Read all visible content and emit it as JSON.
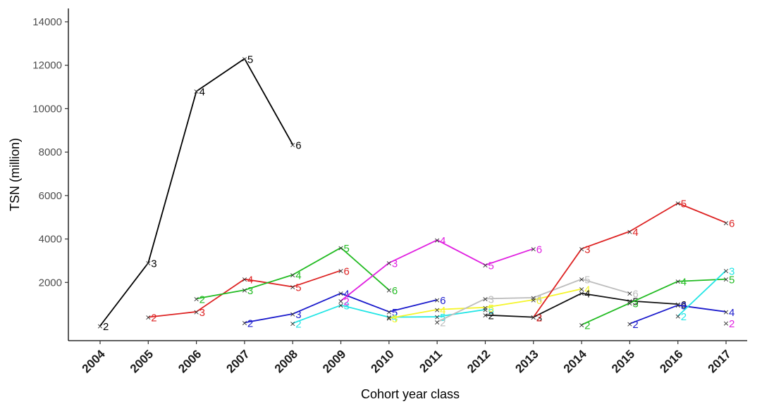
{
  "chart_data": {
    "type": "line",
    "xlabel": "Cohort year class",
    "ylabel": "TSN (million)",
    "x_ticks": [
      "2004",
      "2005",
      "2006",
      "2007",
      "2008",
      "2009",
      "2010",
      "2011",
      "2012",
      "2013",
      "2014",
      "2015",
      "2016",
      "2017"
    ],
    "y_ticks": [
      2000,
      4000,
      6000,
      8000,
      10000,
      12000,
      14000
    ],
    "xlim": [
      2004,
      2017
    ],
    "ylim": [
      -800,
      14600
    ],
    "grid": false,
    "marker": "×",
    "series": [
      {
        "color": "#000000",
        "points": [
          [
            2004,
            0,
            "2"
          ],
          [
            2005,
            2900,
            "3"
          ],
          [
            2006,
            10800,
            "4"
          ],
          [
            2007,
            12300,
            "5"
          ],
          [
            2008,
            8350,
            "6"
          ]
        ]
      },
      {
        "color": "#dd2222",
        "points": [
          [
            2005,
            400,
            "2"
          ],
          [
            2006,
            650,
            "3"
          ],
          [
            2007,
            2150,
            "4"
          ],
          [
            2008,
            1800,
            "5"
          ],
          [
            2009,
            2550,
            "6"
          ]
        ]
      },
      {
        "color": "#22bb22",
        "points": [
          [
            2006,
            1250,
            "2"
          ],
          [
            2007,
            1650,
            "3"
          ],
          [
            2008,
            2350,
            "4"
          ],
          [
            2009,
            3600,
            "5"
          ],
          [
            2010,
            1650,
            "6"
          ]
        ]
      },
      {
        "color": "#1a1acc",
        "points": [
          [
            2007,
            150,
            "2"
          ],
          [
            2008,
            550,
            "3"
          ],
          [
            2009,
            1500,
            "4"
          ],
          [
            2010,
            650,
            "5"
          ],
          [
            2011,
            1200,
            "6"
          ]
        ]
      },
      {
        "color": "#22e5e5",
        "points": [
          [
            2008,
            120,
            "2"
          ],
          [
            2009,
            950,
            "3"
          ],
          [
            2010,
            400,
            "4"
          ],
          [
            2011,
            420,
            "5"
          ],
          [
            2012,
            750,
            "6"
          ]
        ]
      },
      {
        "color": "#e020e0",
        "points": [
          [
            2009,
            1150,
            "2"
          ],
          [
            2010,
            2900,
            "3"
          ],
          [
            2011,
            3950,
            "4"
          ],
          [
            2012,
            2800,
            "5"
          ],
          [
            2013,
            3550,
            "6"
          ]
        ]
      },
      {
        "color": "#f5f52a",
        "points": [
          [
            2010,
            350,
            "3"
          ],
          [
            2011,
            750,
            "4"
          ],
          [
            2012,
            850,
            "5"
          ],
          [
            2013,
            1200,
            "6"
          ],
          [
            2014,
            1700,
            "4"
          ]
        ]
      },
      {
        "color": "#bdbdbd",
        "points": [
          [
            2011,
            180,
            "2"
          ],
          [
            2012,
            1250,
            "3"
          ],
          [
            2013,
            1300,
            "4"
          ],
          [
            2014,
            2150,
            "5"
          ],
          [
            2015,
            1500,
            "6"
          ]
        ]
      },
      {
        "color": "#111111",
        "points": [
          [
            2012,
            500,
            "2"
          ],
          [
            2013,
            400,
            "3"
          ],
          [
            2014,
            1500,
            "4"
          ],
          [
            2015,
            1150,
            "5"
          ],
          [
            2016,
            1000,
            "6"
          ]
        ]
      },
      {
        "color": "#dd2222",
        "points": [
          [
            2013,
            400,
            "2"
          ],
          [
            2014,
            3550,
            "3"
          ],
          [
            2015,
            4350,
            "4"
          ],
          [
            2016,
            5650,
            "5"
          ],
          [
            2017,
            4750,
            "6"
          ]
        ]
      },
      {
        "color": "#22bb22",
        "points": [
          [
            2014,
            50,
            "2"
          ],
          [
            2015,
            1050,
            "3"
          ],
          [
            2016,
            2050,
            "4"
          ],
          [
            2017,
            2150,
            "5"
          ]
        ]
      },
      {
        "color": "#1a1acc",
        "points": [
          [
            2015,
            100,
            "2"
          ],
          [
            2016,
            950,
            "3"
          ],
          [
            2017,
            650,
            "4"
          ]
        ]
      },
      {
        "color": "#22e5e5",
        "points": [
          [
            2016,
            450,
            "2"
          ],
          [
            2017,
            2550,
            "3"
          ]
        ]
      },
      {
        "color": "#e020e0",
        "points": [
          [
            2017,
            130,
            "2"
          ]
        ]
      }
    ]
  }
}
